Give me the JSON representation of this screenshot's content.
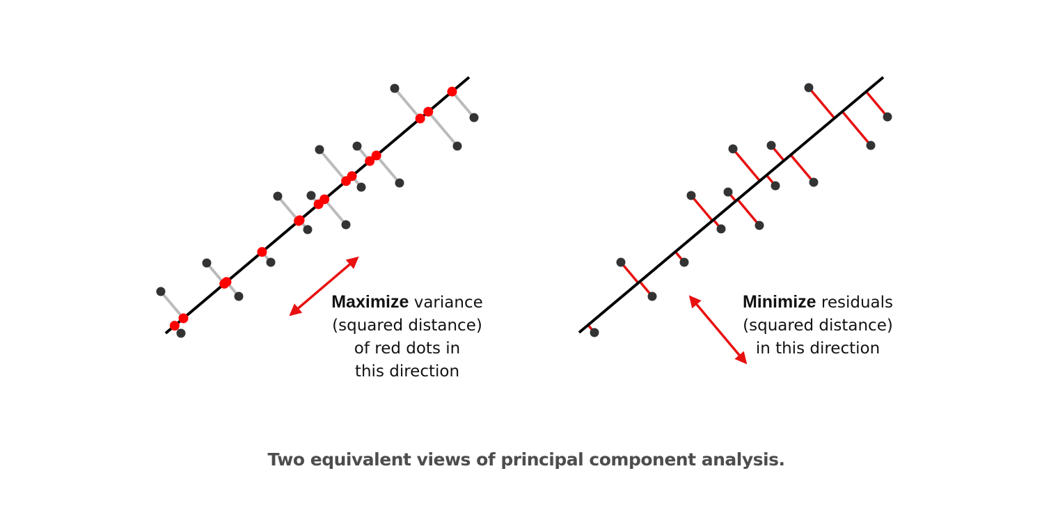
{
  "panels": [
    {
      "id": "left",
      "text": {
        "bold": "Maximize",
        "rest_line1": " variance",
        "line2": "(squared distance)",
        "line3": "of red dots in",
        "line4": "this direction"
      }
    },
    {
      "id": "right",
      "text": {
        "bold": "Minimize",
        "rest_line1": " residuals",
        "line2": "(squared distance)",
        "line3": "in this direction"
      }
    }
  ],
  "caption": "Two equivalent views of principal component analysis.",
  "colors": {
    "axis_line": "#000000",
    "data_point": "#333333",
    "projection": "#ff0000",
    "connector_left": "#bbbbbb",
    "residual_right": "#e81010",
    "arrow": "#e81010",
    "caption": "#4d4d4d"
  }
}
